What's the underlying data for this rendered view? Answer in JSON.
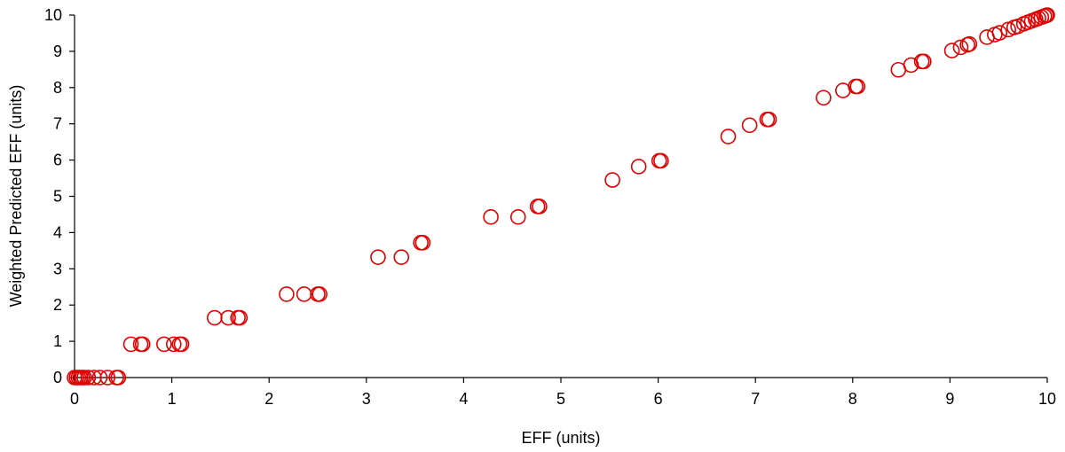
{
  "chart_data": {
    "type": "scatter",
    "title": "",
    "xlabel": "EFF (units)",
    "ylabel": "Weighted Predicted EFF (units)",
    "xlim": [
      0,
      10
    ],
    "ylim": [
      0,
      10
    ],
    "xticks": [
      "0",
      "1",
      "2",
      "3",
      "4",
      "5",
      "6",
      "7",
      "8",
      "9",
      "10"
    ],
    "yticks": [
      "0",
      "1",
      "2",
      "3",
      "4",
      "5",
      "6",
      "7",
      "8",
      "9",
      "10"
    ],
    "grid": false,
    "legend": "none",
    "marker": "open-circle",
    "color": "#e00000",
    "series": [
      {
        "points": [
          [
            0.0,
            0.0
          ],
          [
            0.02,
            0.0
          ],
          [
            0.04,
            0.0
          ],
          [
            0.06,
            0.0
          ],
          [
            0.08,
            0.0
          ],
          [
            0.1,
            0.0
          ],
          [
            0.14,
            0.0
          ],
          [
            0.2,
            0.0
          ],
          [
            0.26,
            0.0
          ],
          [
            0.34,
            0.0
          ],
          [
            0.43,
            0.0
          ],
          [
            0.45,
            0.0
          ],
          [
            0.58,
            0.92
          ],
          [
            0.68,
            0.92
          ],
          [
            0.7,
            0.92
          ],
          [
            0.92,
            0.92
          ],
          [
            1.02,
            0.92
          ],
          [
            1.08,
            0.92
          ],
          [
            1.1,
            0.92
          ],
          [
            1.44,
            1.65
          ],
          [
            1.58,
            1.65
          ],
          [
            1.68,
            1.65
          ],
          [
            1.7,
            1.65
          ],
          [
            2.18,
            2.3
          ],
          [
            2.36,
            2.3
          ],
          [
            2.5,
            2.3
          ],
          [
            2.52,
            2.3
          ],
          [
            3.12,
            3.32
          ],
          [
            3.36,
            3.32
          ],
          [
            3.56,
            3.72
          ],
          [
            3.58,
            3.72
          ],
          [
            4.28,
            4.43
          ],
          [
            4.56,
            4.43
          ],
          [
            4.76,
            4.72
          ],
          [
            4.78,
            4.72
          ],
          [
            5.53,
            5.45
          ],
          [
            5.8,
            5.82
          ],
          [
            6.01,
            5.98
          ],
          [
            6.03,
            5.98
          ],
          [
            6.72,
            6.65
          ],
          [
            6.94,
            6.96
          ],
          [
            7.12,
            7.12
          ],
          [
            7.14,
            7.12
          ],
          [
            7.7,
            7.72
          ],
          [
            7.9,
            7.92
          ],
          [
            8.03,
            8.03
          ],
          [
            8.05,
            8.03
          ],
          [
            8.47,
            8.49
          ],
          [
            8.6,
            8.62
          ],
          [
            8.71,
            8.72
          ],
          [
            8.73,
            8.72
          ],
          [
            9.02,
            9.02
          ],
          [
            9.11,
            9.11
          ],
          [
            9.18,
            9.18
          ],
          [
            9.2,
            9.2
          ],
          [
            9.38,
            9.39
          ],
          [
            9.46,
            9.46
          ],
          [
            9.51,
            9.51
          ],
          [
            9.6,
            9.6
          ],
          [
            9.66,
            9.66
          ],
          [
            9.7,
            9.69
          ],
          [
            9.76,
            9.76
          ],
          [
            9.8,
            9.8
          ],
          [
            9.84,
            9.84
          ],
          [
            9.88,
            9.88
          ],
          [
            9.91,
            9.91
          ],
          [
            9.94,
            9.94
          ],
          [
            9.97,
            9.97
          ],
          [
            9.99,
            9.99
          ],
          [
            10.0,
            10.0
          ]
        ]
      }
    ]
  }
}
